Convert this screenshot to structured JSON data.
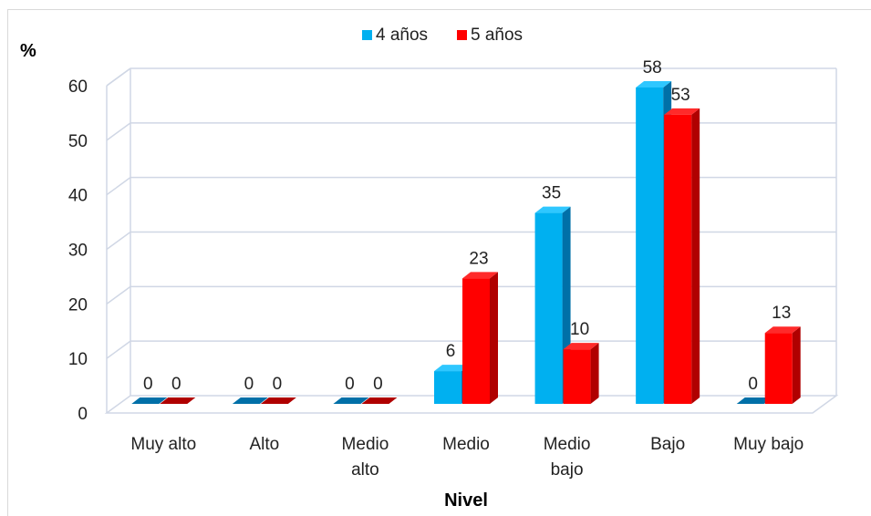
{
  "chart_data": {
    "type": "bar",
    "categories": [
      "Muy alto",
      "Alto",
      "Medio alto",
      "Medio",
      "Medio bajo",
      "Bajo",
      "Muy bajo"
    ],
    "series": [
      {
        "name": "4 años",
        "values": [
          0,
          0,
          0,
          6,
          35,
          58,
          0
        ],
        "color": "#00b0f0",
        "side_color": "#0070a8",
        "top_color": "#2fc7ff"
      },
      {
        "name": "5 años",
        "values": [
          0,
          0,
          0,
          23,
          10,
          53,
          13
        ],
        "color": "#ff0000",
        "side_color": "#b00000",
        "top_color": "#ff2a2a"
      }
    ],
    "xlabel": "Nivel",
    "ylabel": "%",
    "ylim": [
      0,
      60
    ],
    "yticks": [
      0,
      10,
      20,
      30,
      40,
      50,
      60
    ],
    "grid": true,
    "legend_position": "top-center",
    "three_d": true
  }
}
